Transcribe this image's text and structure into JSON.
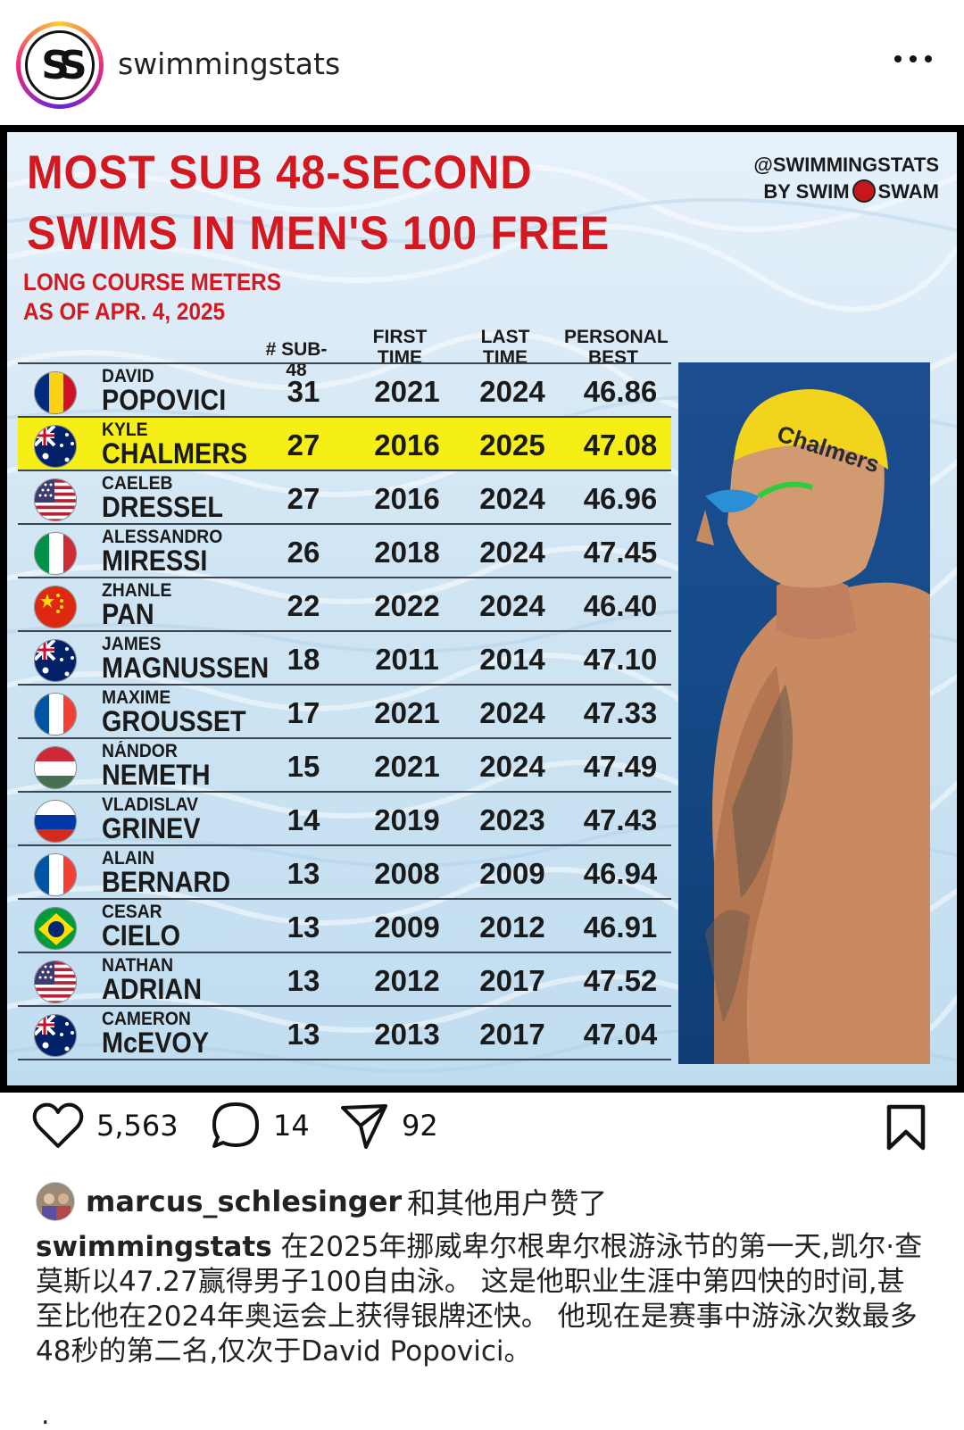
{
  "post": {
    "username": "swimmingstats",
    "avatar_letters": "SS",
    "more_icon": "ellipsis-icon"
  },
  "infographic": {
    "title_line1": "MOST SUB 48-SECOND",
    "title_line2": "SWIMS IN MEN'S 100 FREE",
    "subtitle_line1": "LONG COURSE METERS",
    "subtitle_line2": "AS OF APR. 4, 2025",
    "credit_line1": "@SWIMMINGSTATS",
    "credit_by": "BY SWIM",
    "credit_swam": "SWAM",
    "headers": {
      "sub48": "# SUB-48",
      "first_l1": "FIRST",
      "first_l2": "TIME",
      "last_l1": "LAST",
      "last_l2": "TIME",
      "pb_l1": "PERSONAL",
      "pb_l2": "BEST"
    },
    "rows": [
      {
        "first": "DAVID",
        "last": "POPOVICI",
        "flag": "romania",
        "sub48": "31",
        "first_time": "2021",
        "last_time": "2024",
        "pb": "46.86"
      },
      {
        "first": "KYLE",
        "last": "CHALMERS",
        "flag": "australia",
        "sub48": "27",
        "first_time": "2016",
        "last_time": "2025",
        "pb": "47.08",
        "highlight": true
      },
      {
        "first": "CAELEB",
        "last": "DRESSEL",
        "flag": "usa",
        "sub48": "27",
        "first_time": "2016",
        "last_time": "2024",
        "pb": "46.96"
      },
      {
        "first": "ALESSANDRO",
        "last": "MIRESSI",
        "flag": "italy",
        "sub48": "26",
        "first_time": "2018",
        "last_time": "2024",
        "pb": "47.45"
      },
      {
        "first": "ZHANLE",
        "last": "PAN",
        "flag": "china",
        "sub48": "22",
        "first_time": "2022",
        "last_time": "2024",
        "pb": "46.40"
      },
      {
        "first": "JAMES",
        "last": "MAGNUSSEN",
        "flag": "australia",
        "sub48": "18",
        "first_time": "2011",
        "last_time": "2014",
        "pb": "47.10"
      },
      {
        "first": "MAXIME",
        "last": "GROUSSET",
        "flag": "france",
        "sub48": "17",
        "first_time": "2021",
        "last_time": "2024",
        "pb": "47.33"
      },
      {
        "first": "NÁNDOR",
        "last": "NEMETH",
        "flag": "hungary",
        "sub48": "15",
        "first_time": "2021",
        "last_time": "2024",
        "pb": "47.49"
      },
      {
        "first": "VLADISLAV",
        "last": "GRINEV",
        "flag": "russia",
        "sub48": "14",
        "first_time": "2019",
        "last_time": "2023",
        "pb": "47.43"
      },
      {
        "first": "ALAIN",
        "last": "BERNARD",
        "flag": "france",
        "sub48": "13",
        "first_time": "2008",
        "last_time": "2009",
        "pb": "46.94"
      },
      {
        "first": "CESAR",
        "last": "CIELO",
        "flag": "brazil",
        "sub48": "13",
        "first_time": "2009",
        "last_time": "2012",
        "pb": "46.91"
      },
      {
        "first": "NATHAN",
        "last": "ADRIAN",
        "flag": "usa",
        "sub48": "13",
        "first_time": "2012",
        "last_time": "2017",
        "pb": "47.52"
      },
      {
        "first": "CAMERON",
        "last": "McEVOY",
        "flag": "australia",
        "sub48": "13",
        "first_time": "2013",
        "last_time": "2017",
        "pb": "47.04"
      }
    ],
    "photo_cap_text": "Chalmers",
    "colors": {
      "title_red": "#d4181f",
      "highlight_yellow": "#f5ef16",
      "cap_yellow": "#f2d41c"
    }
  },
  "actions": {
    "likes_count": "5,563",
    "comments_count": "14",
    "shares_count": "92"
  },
  "likes_line": {
    "user": "marcus_schlesinger",
    "rest": "和其他用户赞了"
  },
  "caption": {
    "user": "swimmingstats",
    "text": " 在2025年挪威卑尔根卑尔根游泳节的第一天,凯尔·查莫斯以47.27赢得男子100自由泳。 这是他职业生涯中第四快的时间,甚至比他在2024年奥运会上获得银牌还快。 他现在是赛事中游泳次数最多48秒的第二名,仅次于David Popovici。"
  },
  "more_dot": "."
}
